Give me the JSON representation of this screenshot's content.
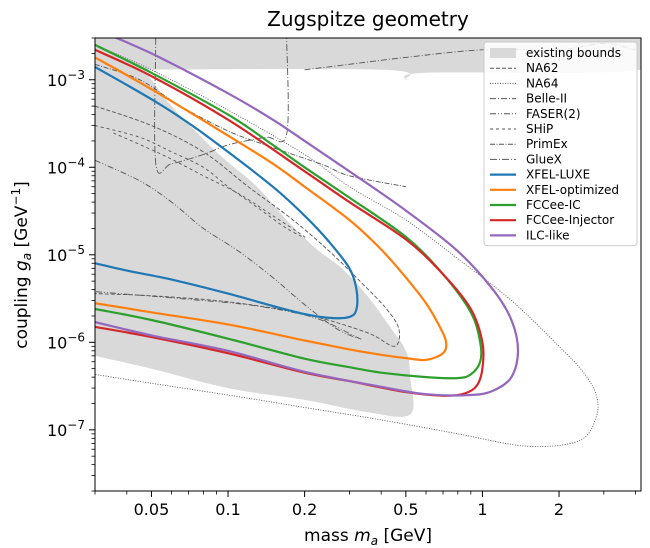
{
  "chart_data": {
    "type": "line",
    "title": "Zugspitze geometry",
    "xlabel": "mass m_a [GeV]",
    "ylabel": "coupling g_a [GeV⁻¹]",
    "xscale": "log",
    "yscale": "log",
    "xlim": [
      0.03,
      4.2
    ],
    "ylim": [
      2e-08,
      0.003
    ],
    "x_ticks": [
      {
        "value": 0.05,
        "label": "0.05"
      },
      {
        "value": 0.1,
        "label": "0.1"
      },
      {
        "value": 0.2,
        "label": "0.2"
      },
      {
        "value": 0.5,
        "label": "0.5"
      },
      {
        "value": 1,
        "label": "1"
      },
      {
        "value": 2,
        "label": "2"
      }
    ],
    "y_ticks": [
      {
        "value": 0.001,
        "base": "10",
        "exp": "−3"
      },
      {
        "value": 0.0001,
        "base": "10",
        "exp": "−4"
      },
      {
        "value": 1e-05,
        "base": "10",
        "exp": "−5"
      },
      {
        "value": 1e-06,
        "base": "10",
        "exp": "−6"
      },
      {
        "value": 1e-07,
        "base": "10",
        "exp": "−7"
      }
    ],
    "legend_position": "top-right",
    "grid": false,
    "existing_bounds": {
      "name": "existing bounds",
      "color": "#d9d9d9",
      "regions": [
        [
          [
            0.03,
            0.003
          ],
          [
            4.2,
            0.003
          ],
          [
            4.2,
            0.0013
          ],
          [
            0.6,
            0.0012
          ],
          [
            0.5,
            0.001
          ],
          [
            0.4,
            0.0013
          ],
          [
            0.03,
            0.0013
          ]
        ],
        [
          [
            0.03,
            0.0013
          ],
          [
            0.045,
            0.0013
          ],
          [
            0.05,
            0.001
          ],
          [
            0.06,
            0.0005
          ],
          [
            0.09,
            0.00015
          ],
          [
            0.13,
            6e-05
          ],
          [
            0.17,
            2.5e-05
          ],
          [
            0.22,
            1.2e-05
          ],
          [
            0.28,
            7e-06
          ],
          [
            0.35,
            3.5e-06
          ],
          [
            0.42,
            1.7e-06
          ],
          [
            0.5,
            8e-07
          ],
          [
            0.52,
            4e-07
          ],
          [
            0.52,
            1.5e-07
          ],
          [
            0.35,
            1.6e-07
          ],
          [
            0.2,
            2.2e-07
          ],
          [
            0.1,
            3e-07
          ],
          [
            0.05,
            5e-07
          ],
          [
            0.03,
            7e-07
          ]
        ]
      ]
    },
    "reference_bounds": [
      {
        "name": "NA62",
        "style": "dashed",
        "points": [
          [
            0.03,
            0.0005
          ],
          [
            0.05,
            0.0003
          ],
          [
            0.08,
            0.00015
          ],
          [
            0.12,
            6e-05
          ],
          [
            0.18,
            2.5e-05
          ],
          [
            0.25,
            1.1e-05
          ],
          [
            0.33,
            5e-06
          ],
          [
            0.42,
            2.4e-06
          ],
          [
            0.47,
            1.4e-06
          ],
          [
            0.45,
            9e-07
          ],
          [
            0.35,
            1.3e-06
          ],
          [
            0.2,
            2.1e-06
          ],
          [
            0.1,
            2.9e-06
          ],
          [
            0.05,
            3.4e-06
          ],
          [
            0.03,
            3.6e-06
          ]
        ]
      },
      {
        "name": "NA64",
        "style": "dotted",
        "points": [
          [
            0.03,
            0.0025
          ],
          [
            0.05,
            0.0013
          ],
          [
            0.1,
            0.00045
          ],
          [
            0.2,
            0.00014
          ],
          [
            0.3,
            6e-05
          ],
          [
            0.5,
            2.5e-05
          ],
          [
            0.8,
            9e-06
          ],
          [
            1.3,
            3e-06
          ],
          [
            2,
            9e-07
          ],
          [
            2.5,
            4.5e-07
          ],
          [
            2.8,
            2.5e-07
          ],
          [
            2.8,
            1.4e-07
          ],
          [
            2.4,
            7.5e-08
          ],
          [
            1.5,
            6.5e-08
          ],
          [
            0.8,
            9e-08
          ],
          [
            0.4,
            1.3e-07
          ],
          [
            0.2,
            1.8e-07
          ],
          [
            0.1,
            2.5e-07
          ],
          [
            0.05,
            3.4e-07
          ],
          [
            0.03,
            4.3e-07
          ]
        ]
      },
      {
        "name": "Belle-II",
        "style": "dashdot",
        "points": [
          [
            0.2,
            0.0013
          ],
          [
            0.3,
            0.0015
          ],
          [
            0.5,
            0.0018
          ],
          [
            1,
            0.0022
          ],
          [
            2,
            0.0022
          ],
          [
            3,
            0.0026
          ],
          [
            4,
            0.0022
          ]
        ]
      },
      {
        "name": "FASER(2)",
        "style": "dashdotdot",
        "points": [
          [
            0.03,
            0.00012
          ],
          [
            0.045,
            7e-05
          ],
          [
            0.06,
            4e-05
          ],
          [
            0.08,
            2e-05
          ],
          [
            0.11,
            1.1e-05
          ],
          [
            0.15,
            5.5e-06
          ],
          [
            0.2,
            2.7e-06
          ],
          [
            0.27,
            1.4e-06
          ],
          [
            0.33,
            1.1e-06
          ],
          [
            0.31,
            1.2e-06
          ],
          [
            0.22,
            1.9e-06
          ],
          [
            0.13,
            2.6e-06
          ],
          [
            0.07,
            3.1e-06
          ],
          [
            0.03,
            3.8e-06
          ]
        ]
      },
      {
        "name": "SHiP",
        "style": "loose-dashed",
        "points": [
          [
            0.03,
            0.0003
          ],
          [
            0.045,
            0.00022
          ],
          [
            0.06,
            0.00015
          ],
          [
            0.08,
            0.0001
          ],
          [
            0.1,
            6e-05
          ],
          [
            0.13,
            3.5e-05
          ],
          [
            0.17,
            2e-05
          ],
          [
            0.2,
            1.6e-05
          ],
          [
            0.15,
            2.8e-05
          ],
          [
            0.11,
            5e-05
          ],
          [
            0.08,
            8e-05
          ],
          [
            0.055,
            0.00014
          ],
          [
            0.035,
            0.00025
          ]
        ]
      },
      {
        "name": "PrimEx",
        "style": "dashdot-fine",
        "points": [
          [
            0.03,
            0.0015
          ],
          [
            0.045,
            0.001
          ],
          [
            0.065,
            0.0005
          ],
          [
            0.1,
            0.00026
          ],
          [
            0.14,
            0.00018
          ],
          [
            0.18,
            0.00014
          ],
          [
            0.24,
            0.000105
          ],
          [
            0.3,
            8e-05
          ],
          [
            0.5,
            6e-05
          ]
        ]
      },
      {
        "name": "GlueX",
        "style": "dashdot-loose",
        "points": [
          [
            0.052,
            0.003
          ],
          [
            0.052,
            0.00011
          ],
          [
            0.06,
            0.00011
          ],
          [
            0.08,
            0.00014
          ],
          [
            0.1,
            0.00018
          ],
          [
            0.14,
            0.00022
          ],
          [
            0.17,
            0.00024
          ],
          [
            0.17,
            0.003
          ]
        ]
      }
    ],
    "series": [
      {
        "name": "XFEL-LUXE",
        "color": "#1f77b4",
        "points": [
          [
            0.03,
            0.0014
          ],
          [
            0.05,
            0.0006
          ],
          [
            0.07,
            0.00032
          ],
          [
            0.1,
            0.00015
          ],
          [
            0.15,
            6e-05
          ],
          [
            0.2,
            2.8e-05
          ],
          [
            0.25,
            1.4e-05
          ],
          [
            0.3,
            7e-06
          ],
          [
            0.32,
            4e-06
          ],
          [
            0.32,
            2.4e-06
          ],
          [
            0.3,
            1.95e-06
          ],
          [
            0.25,
            1.9e-06
          ],
          [
            0.2,
            2.1e-06
          ],
          [
            0.15,
            2.6e-06
          ],
          [
            0.1,
            3.6e-06
          ],
          [
            0.06,
            5.2e-06
          ],
          [
            0.04,
            6.6e-06
          ],
          [
            0.03,
            8e-06
          ]
        ]
      },
      {
        "name": "XFEL-optimized",
        "color": "#ff7f0e",
        "points": [
          [
            0.03,
            0.0018
          ],
          [
            0.05,
            0.00078
          ],
          [
            0.1,
            0.00023
          ],
          [
            0.15,
            0.00011
          ],
          [
            0.2,
            6e-05
          ],
          [
            0.3,
            2.5e-05
          ],
          [
            0.4,
            1.15e-05
          ],
          [
            0.5,
            5.5e-06
          ],
          [
            0.6,
            2.8e-06
          ],
          [
            0.68,
            1.5e-06
          ],
          [
            0.72,
            1e-06
          ],
          [
            0.7,
            7.5e-07
          ],
          [
            0.6,
            6.3e-07
          ],
          [
            0.5,
            6.6e-07
          ],
          [
            0.4,
            7.2e-07
          ],
          [
            0.3,
            8.3e-07
          ],
          [
            0.2,
            1.05e-06
          ],
          [
            0.1,
            1.6e-06
          ],
          [
            0.05,
            2.2e-06
          ],
          [
            0.03,
            2.8e-06
          ]
        ]
      },
      {
        "name": "FCCee-IC",
        "color": "#2ca02c",
        "points": [
          [
            0.03,
            0.0025
          ],
          [
            0.05,
            0.0012
          ],
          [
            0.1,
            0.0004
          ],
          [
            0.15,
            0.00018
          ],
          [
            0.2,
            0.0001
          ],
          [
            0.3,
            4.5e-05
          ],
          [
            0.5,
            1.6e-05
          ],
          [
            0.7,
            6e-06
          ],
          [
            0.9,
            2.2e-06
          ],
          [
            0.98,
            1e-06
          ],
          [
            0.98,
            6e-07
          ],
          [
            0.9,
            4.3e-07
          ],
          [
            0.8,
            3.9e-07
          ],
          [
            0.6,
            4e-07
          ],
          [
            0.4,
            4.5e-07
          ],
          [
            0.3,
            5.2e-07
          ],
          [
            0.2,
            6.5e-07
          ],
          [
            0.1,
            1.1e-06
          ],
          [
            0.05,
            1.8e-06
          ],
          [
            0.03,
            2.4e-06
          ]
        ]
      },
      {
        "name": "FCCee-Injector",
        "color": "#d62728",
        "points": [
          [
            0.03,
            0.0022
          ],
          [
            0.05,
            0.0011
          ],
          [
            0.1,
            0.00035
          ],
          [
            0.2,
            9e-05
          ],
          [
            0.3,
            4e-05
          ],
          [
            0.5,
            1.5e-05
          ],
          [
            0.7,
            6e-06
          ],
          [
            0.9,
            2.4e-06
          ],
          [
            1.0,
            1e-06
          ],
          [
            1.0,
            5e-07
          ],
          [
            0.95,
            3.2e-07
          ],
          [
            0.85,
            2.6e-07
          ],
          [
            0.7,
            2.45e-07
          ],
          [
            0.5,
            2.7e-07
          ],
          [
            0.3,
            3.6e-07
          ],
          [
            0.2,
            4.5e-07
          ],
          [
            0.1,
            7.5e-07
          ],
          [
            0.05,
            1.15e-06
          ],
          [
            0.03,
            1.5e-06
          ]
        ]
      },
      {
        "name": "ILC-like",
        "color": "#9467bd",
        "points": [
          [
            0.03,
            0.0038
          ],
          [
            0.05,
            0.002
          ],
          [
            0.1,
            0.0007
          ],
          [
            0.15,
            0.00035
          ],
          [
            0.2,
            0.0002
          ],
          [
            0.3,
            9e-05
          ],
          [
            0.5,
            3.2e-05
          ],
          [
            0.8,
            1.1e-05
          ],
          [
            1.1,
            4e-06
          ],
          [
            1.3,
            1.8e-06
          ],
          [
            1.38,
            8e-07
          ],
          [
            1.3,
            4e-07
          ],
          [
            1.1,
            2.8e-07
          ],
          [
            0.9,
            2.5e-07
          ],
          [
            0.6,
            2.55e-07
          ],
          [
            0.4,
            3.1e-07
          ],
          [
            0.2,
            4.6e-07
          ],
          [
            0.1,
            8e-07
          ],
          [
            0.05,
            1.2e-06
          ],
          [
            0.03,
            1.7e-06
          ]
        ]
      }
    ]
  }
}
